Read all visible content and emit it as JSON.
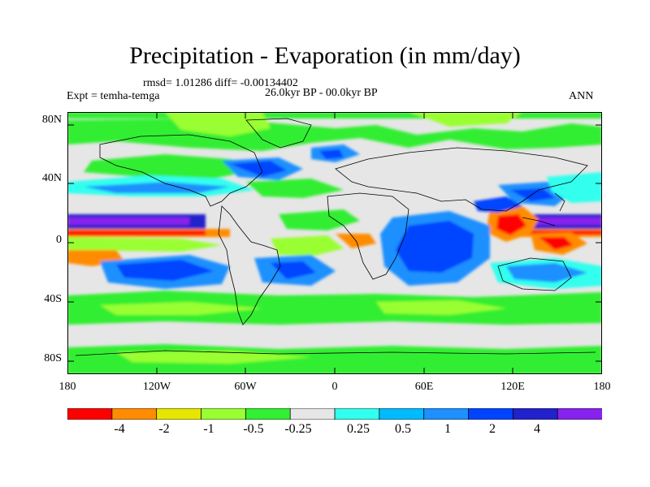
{
  "title": "Precipitation - Evaporation (in mm/day)",
  "stats": "rmsd= 1.01286 diff= -0.00134402",
  "period": "26.0kyr BP - 00.0kyr BP",
  "experiment": "Expt = temha-temga",
  "season": "ANN",
  "axes": {
    "lat_ticks": [
      "80N",
      "40N",
      "0",
      "40S",
      "80S"
    ],
    "lon_ticks": [
      "180",
      "120W",
      "60W",
      "0",
      "60E",
      "120E",
      "180"
    ]
  },
  "colorbar": {
    "colors": [
      "#ff0000",
      "#ff8c00",
      "#e6e600",
      "#99ff33",
      "#33ee33",
      "#e6e6e6",
      "#33ffee",
      "#00bbff",
      "#1e90ff",
      "#0044ff",
      "#2222cc",
      "#8822ee"
    ],
    "labels": [
      "-4",
      "-2",
      "-1",
      "-0.5",
      "-0.25",
      "0.25",
      "0.5",
      "1",
      "2",
      "4"
    ]
  },
  "chart_data": {
    "type": "heatmap",
    "title": "Precipitation - Evaporation (in mm/day)",
    "subtitle": "26.0kyr BP - 00.0kyr BP",
    "xlabel": "",
    "ylabel": "",
    "x_ticks": [
      "180",
      "120W",
      "60W",
      "0",
      "60E",
      "120E",
      "180"
    ],
    "y_ticks": [
      "80N",
      "40N",
      "0",
      "40S",
      "80S"
    ],
    "lon_range": [
      -180,
      180
    ],
    "lat_range": [
      -90,
      90
    ],
    "levels": [
      -4,
      -2,
      -1,
      -0.5,
      -0.25,
      0.25,
      0.5,
      1,
      2,
      4
    ],
    "units": "mm/day"
  }
}
